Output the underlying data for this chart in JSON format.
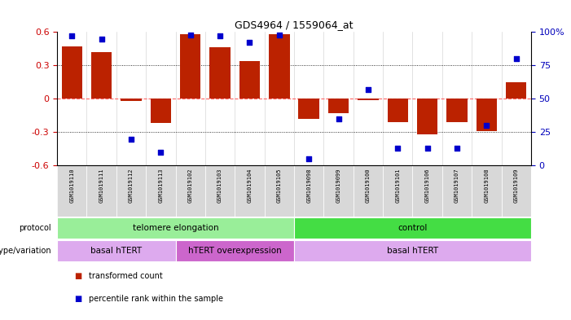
{
  "title": "GDS4964 / 1559064_at",
  "samples": [
    "GSM1019110",
    "GSM1019111",
    "GSM1019112",
    "GSM1019113",
    "GSM1019102",
    "GSM1019103",
    "GSM1019104",
    "GSM1019105",
    "GSM1019098",
    "GSM1019099",
    "GSM1019100",
    "GSM1019101",
    "GSM1019106",
    "GSM1019107",
    "GSM1019108",
    "GSM1019109"
  ],
  "bar_values": [
    0.47,
    0.42,
    -0.02,
    -0.22,
    0.58,
    0.46,
    0.34,
    0.58,
    -0.18,
    -0.13,
    -0.01,
    -0.21,
    -0.32,
    -0.21,
    -0.29,
    0.15
  ],
  "dot_values": [
    97,
    95,
    20,
    10,
    98,
    97,
    92,
    98,
    5,
    35,
    57,
    13,
    13,
    13,
    30,
    80
  ],
  "ylim_left": [
    -0.6,
    0.6
  ],
  "ylim_right": [
    0,
    100
  ],
  "bar_color": "#BB2200",
  "dot_color": "#0000CC",
  "zero_line_color": "#FF6666",
  "bg_color": "#FFFFFF",
  "tick_color_left": "#CC0000",
  "tick_color_right": "#0000BB",
  "protocol_groups": [
    {
      "label": "telomere elongation",
      "start": 0,
      "end": 8,
      "color": "#99EE99"
    },
    {
      "label": "control",
      "start": 8,
      "end": 16,
      "color": "#44DD44"
    }
  ],
  "genotype_groups": [
    {
      "label": "basal hTERT",
      "start": 0,
      "end": 4,
      "color": "#DDAAEE"
    },
    {
      "label": "hTERT overexpression",
      "start": 4,
      "end": 8,
      "color": "#CC66CC"
    },
    {
      "label": "basal hTERT",
      "start": 8,
      "end": 16,
      "color": "#DDAAEE"
    }
  ],
  "right_axis_ticks": [
    0,
    25,
    50,
    75,
    100
  ],
  "right_axis_tick_labels": [
    "0",
    "25",
    "50",
    "75",
    "100%"
  ],
  "left_axis_ticks": [
    -0.6,
    -0.3,
    0.0,
    0.3,
    0.6
  ],
  "left_axis_tick_labels": [
    "-0.6",
    "-0.3",
    "0",
    "0.3",
    "0.6"
  ],
  "legend_items": [
    {
      "color": "#BB2200",
      "label": "transformed count"
    },
    {
      "color": "#0000CC",
      "label": "percentile rank within the sample"
    }
  ]
}
